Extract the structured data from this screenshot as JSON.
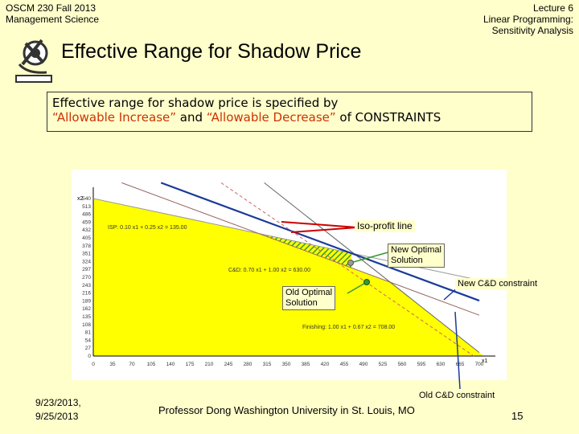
{
  "header": {
    "course_line1": "OSCM 230 Fall 2013",
    "course_line2": "Management Science",
    "lecture_line1": "Lecture 6",
    "lecture_line2": "Linear Programming:",
    "lecture_line3": "Sensitivity Analysis"
  },
  "title": "Effective Range for Shadow Price",
  "textbox": {
    "line1": "Effective range for shadow price is specified by",
    "part_red1": "“Allowable Increase”",
    "part_and": " and ",
    "part_red2": "“Allowable Decrease”",
    "part_of": " of CONSTRAINTS"
  },
  "callouts": {
    "isoprofit": "Iso-profit line",
    "new_optimal_1": "New Optimal",
    "new_optimal_2": "Solution",
    "old_optimal_1": "Old Optimal",
    "old_optimal_2": "Solution",
    "new_cd": "New C&D constraint",
    "old_cd": "Old C&D constraint"
  },
  "chart_labels": {
    "y_axis_name": "x2",
    "x_axis_name": "x1",
    "isp_label": "ISP: 0.10 x1 + 0.25 x2 = 135.00",
    "cd_label": "C&D: 0.70 x1 + 1.00 x2 = 630.00",
    "finishing_label": "Finishing: 1.00 x1 + 0.67 x2 = 708.00"
  },
  "chart_data": {
    "type": "line",
    "title": "",
    "xlabel": "x1",
    "ylabel": "x2",
    "xlim": [
      0,
      700
    ],
    "ylim": [
      0,
      540
    ],
    "x_ticks": [
      0,
      35,
      70,
      105,
      140,
      175,
      210,
      245,
      280,
      315,
      350,
      385,
      420,
      455,
      490,
      525,
      560,
      595,
      630,
      665,
      700
    ],
    "y_ticks": [
      0,
      27,
      54,
      81,
      108,
      135,
      162,
      189,
      216,
      243,
      270,
      297,
      324,
      351,
      378,
      405,
      432,
      459,
      486,
      513,
      540
    ],
    "series": [
      {
        "name": "ISP: 0.10 x1 + 0.25 x2 = 135.00",
        "points": [
          [
            0,
            540
          ],
          [
            700,
            260
          ]
        ]
      },
      {
        "name": "C&D: 0.70 x1 + 1.00 x2 = 630.00",
        "points": [
          [
            0,
            630
          ],
          [
            700,
            140
          ]
        ]
      },
      {
        "name": "Finishing: 1.00 x1 + 0.67 x2 = 708.00",
        "points": [
          [
            0,
            1056.7
          ],
          [
            708,
            0
          ]
        ]
      },
      {
        "name": "New C&D constraint",
        "points": [
          [
            0,
            680
          ],
          [
            700,
            190
          ]
        ]
      },
      {
        "name": "Iso-profit line",
        "points": [
          [
            150,
            700
          ],
          [
            690,
            0
          ]
        ]
      }
    ],
    "points": [
      {
        "name": "New Optimal Solution",
        "x": 475,
        "y": 355
      },
      {
        "name": "Old Optimal Solution",
        "x": 540,
        "y": 252
      }
    ]
  },
  "footer": {
    "date_line1": "9/23/2013,",
    "date_line2": "9/25/2013",
    "professor": "Professor Dong Washington University in St. Louis, MO",
    "page_number": "15"
  }
}
